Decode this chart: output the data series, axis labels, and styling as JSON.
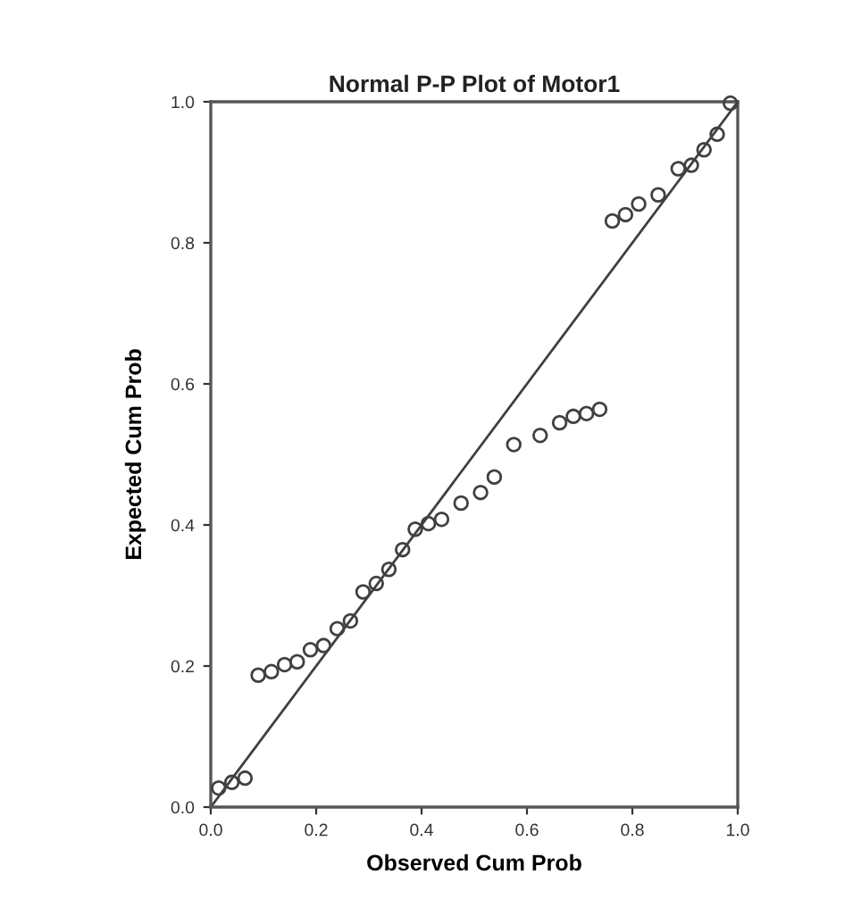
{
  "chart_data": {
    "type": "scatter",
    "title": "Normal P-P Plot of Motor1",
    "xlabel": "Observed Cum Prob",
    "ylabel": "Expected Cum Prob",
    "xlim": [
      0,
      1
    ],
    "ylim": [
      0,
      1
    ],
    "xticks": [
      {
        "value": 0,
        "label": "0.0"
      },
      {
        "value": 0.2,
        "label": "0.2"
      },
      {
        "value": 0.4,
        "label": "0.4"
      },
      {
        "value": 0.6,
        "label": "0.6"
      },
      {
        "value": 0.8,
        "label": "0.8"
      },
      {
        "value": 1,
        "label": "1.0"
      }
    ],
    "yticks": [
      {
        "value": 0,
        "label": "0.0"
      },
      {
        "value": 0.2,
        "label": "0.2"
      },
      {
        "value": 0.4,
        "label": "0.4"
      },
      {
        "value": 0.6,
        "label": "0.6"
      },
      {
        "value": 0.8,
        "label": "0.8"
      },
      {
        "value": 1,
        "label": "1.0"
      }
    ],
    "grid": false,
    "series": [
      {
        "color": "#404040",
        "marker": "circle",
        "x": [
          0.015,
          0.04,
          0.065,
          0.09,
          0.115,
          0.14,
          0.164,
          0.189,
          0.214,
          0.24,
          0.265,
          0.289,
          0.314,
          0.338,
          0.364,
          0.388,
          0.413,
          0.438,
          0.475,
          0.512,
          0.538,
          0.575,
          0.625,
          0.662,
          0.688,
          0.713,
          0.738,
          0.762,
          0.787,
          0.812,
          0.849,
          0.887,
          0.912,
          0.936,
          0.961,
          0.986
        ],
        "values": [
          0.027,
          0.035,
          0.041,
          0.187,
          0.192,
          0.202,
          0.206,
          0.223,
          0.229,
          0.253,
          0.264,
          0.305,
          0.317,
          0.337,
          0.365,
          0.394,
          0.402,
          0.408,
          0.431,
          0.446,
          0.468,
          0.514,
          0.527,
          0.545,
          0.554,
          0.558,
          0.564,
          0.831,
          0.84,
          0.855,
          0.868,
          0.905,
          0.91,
          0.932,
          0.954,
          0.998
        ]
      },
      {
        "type": "line",
        "color": "#404040",
        "x": [
          0,
          1
        ],
        "values": [
          0,
          1
        ],
        "line_style": "solid",
        "marker": "none"
      }
    ]
  }
}
